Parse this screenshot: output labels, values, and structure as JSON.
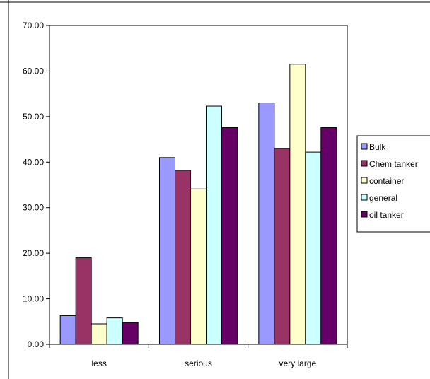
{
  "chart_data": {
    "type": "bar",
    "title": "",
    "xlabel": "",
    "ylabel": "",
    "categories": [
      "less",
      "serious",
      "very large"
    ],
    "ylim": [
      0,
      70
    ],
    "yticks": [
      "0.00",
      "10.00",
      "20.00",
      "30.00",
      "40.00",
      "50.00",
      "60.00",
      "70.00"
    ],
    "grid": false,
    "legend_position": "right",
    "series": [
      {
        "name": "Bulk",
        "color": "#9999ff",
        "values": [
          6.3,
          41.0,
          53.0
        ]
      },
      {
        "name": "Chem tanker",
        "color": "#993366",
        "values": [
          19.0,
          38.2,
          43.0
        ]
      },
      {
        "name": "container",
        "color": "#ffffcc",
        "values": [
          4.5,
          34.1,
          61.5
        ]
      },
      {
        "name": "general",
        "color": "#ccffff",
        "values": [
          5.8,
          52.3,
          42.2
        ]
      },
      {
        "name": "oil tanker",
        "color": "#660066",
        "values": [
          4.8,
          47.6,
          47.6
        ]
      }
    ]
  }
}
